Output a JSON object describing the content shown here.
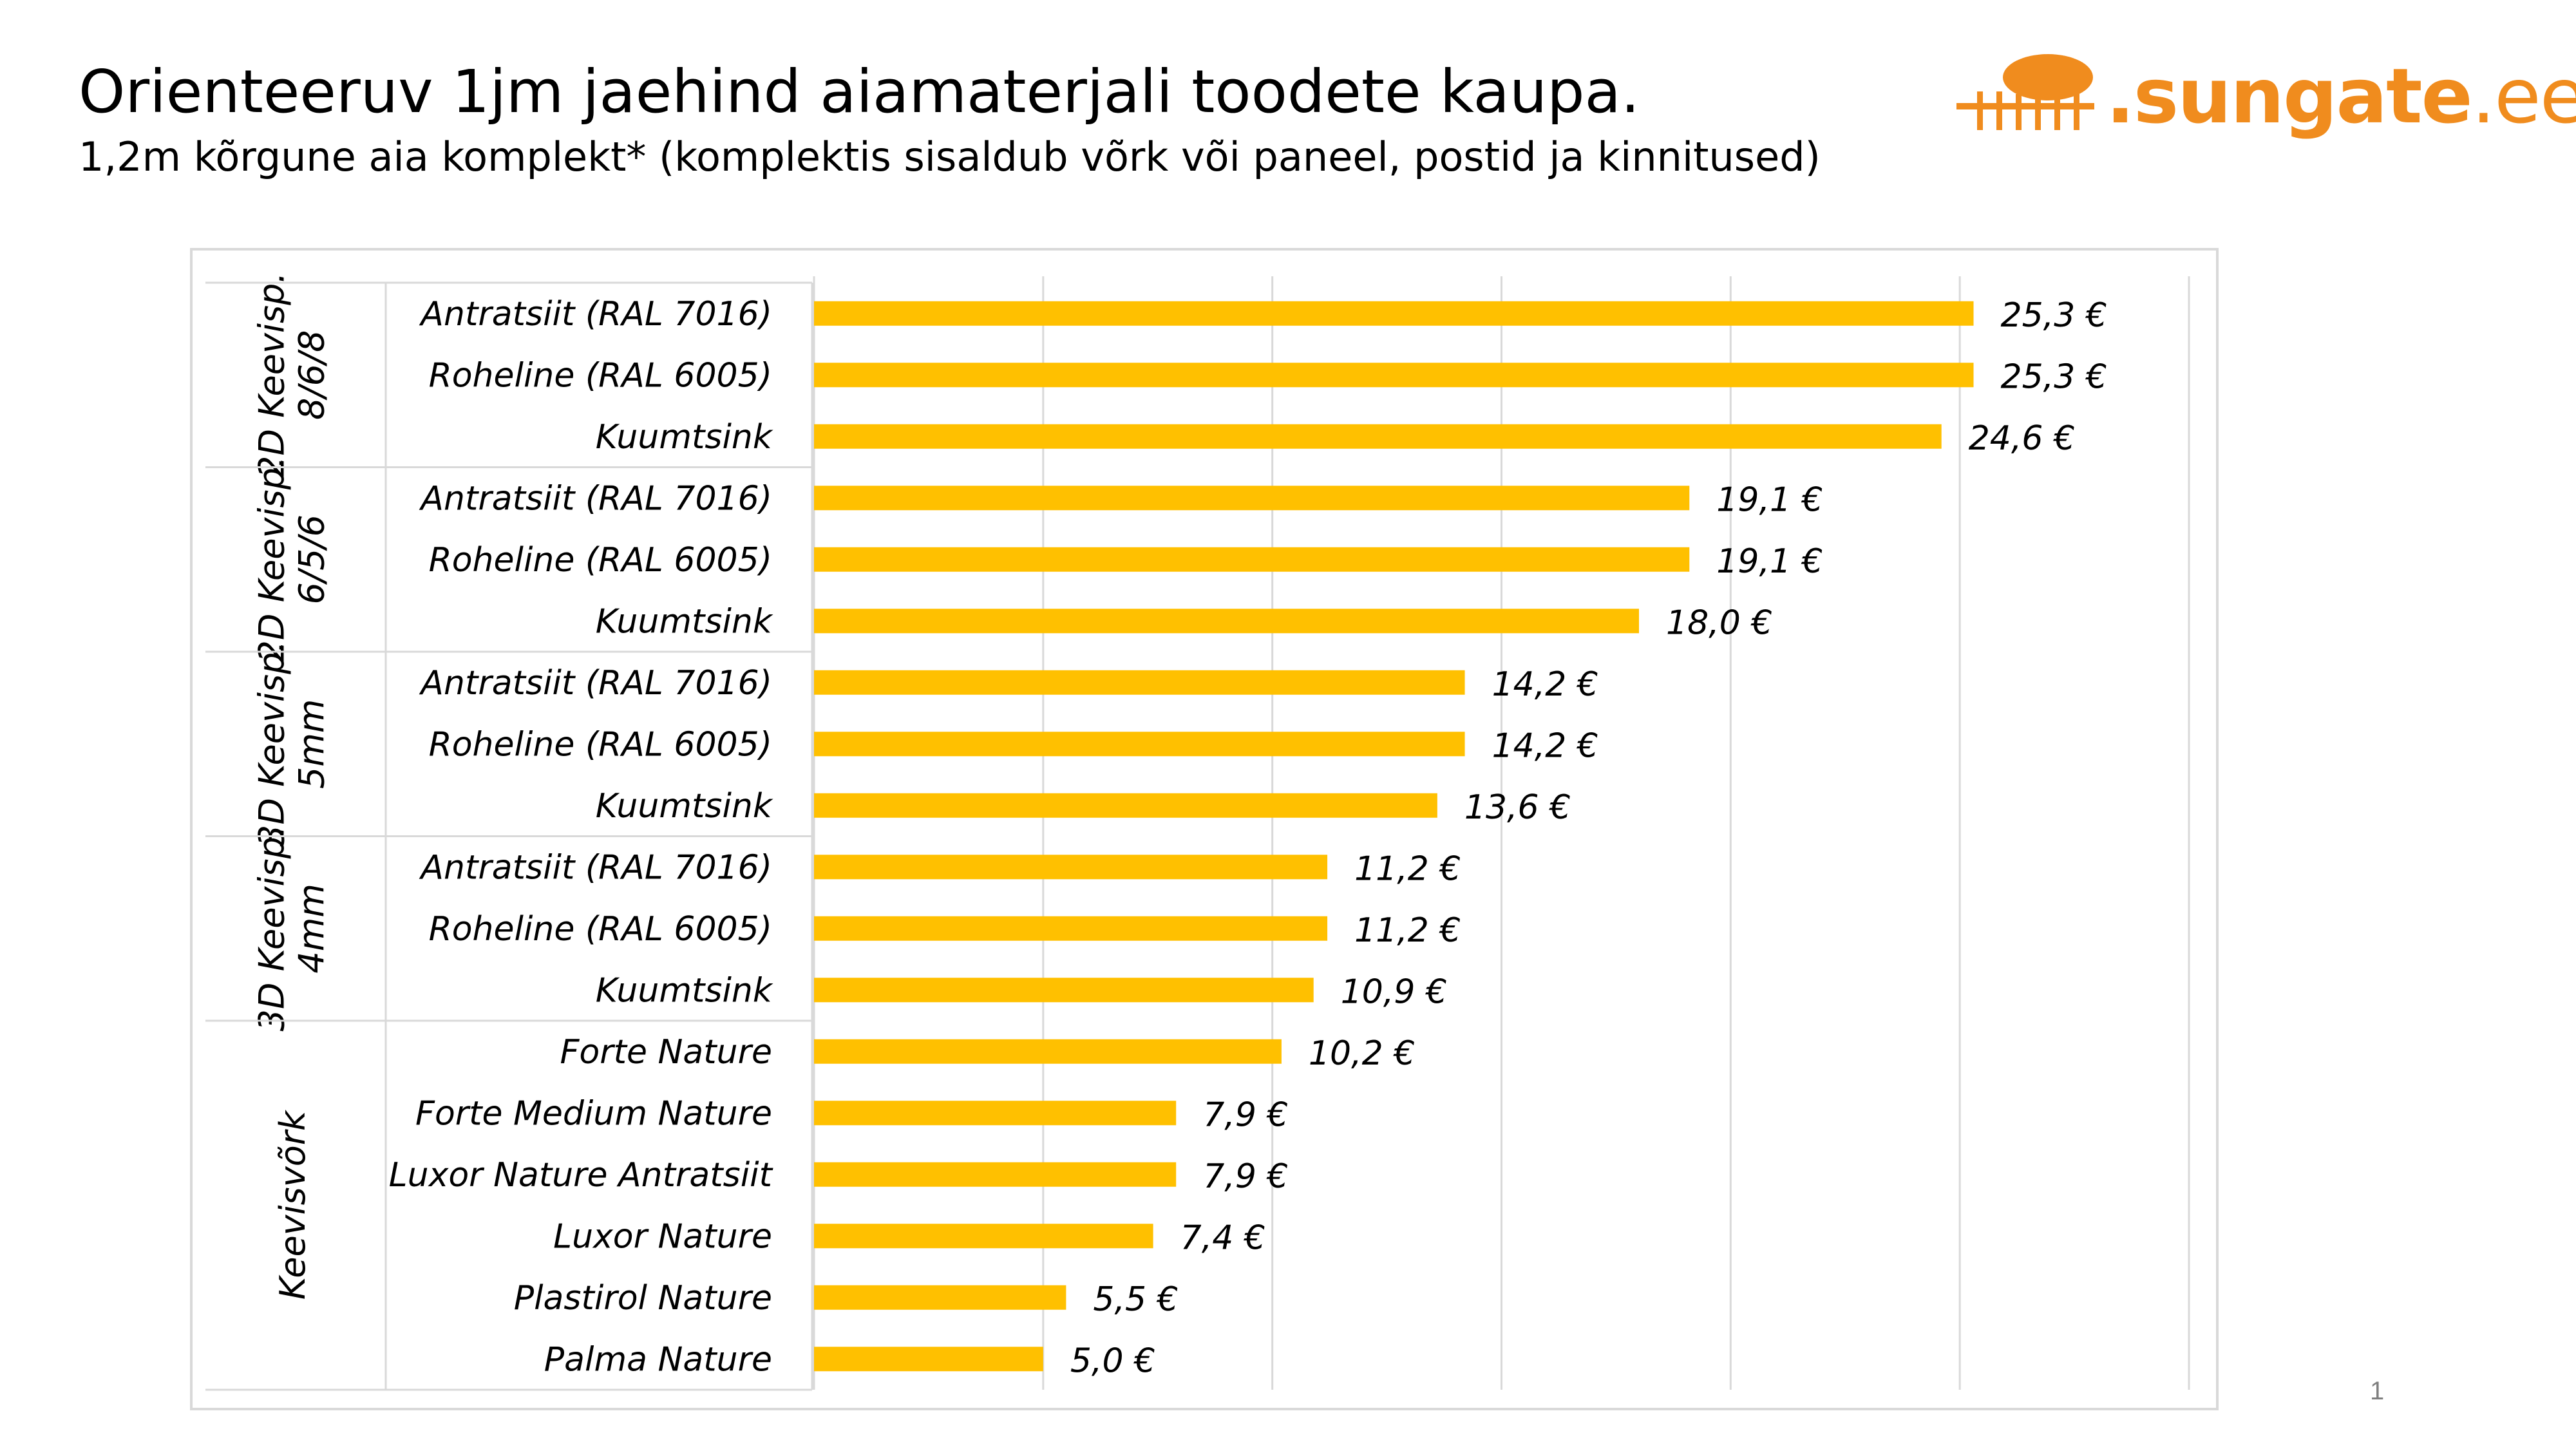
{
  "slide": {
    "title": "Orienteeruv 1jm jaehind aiamaterjali toodete kaupa.",
    "subtitle": "1,2m kõrgune aia komplekt*  (komplektis sisaldub võrk või paneel, postid ja kinnitused)",
    "page_number": "1"
  },
  "logo": {
    "dot": ".",
    "name": "sungate",
    "tld": ".ee",
    "color": "#f08c1e"
  },
  "chart_data": {
    "type": "bar",
    "orientation": "horizontal",
    "bar_color": "#ffc000",
    "grid": true,
    "xlim": [
      0,
      30
    ],
    "groups": [
      {
        "label_line1": "2D Keevisp.",
        "label_line2": "8/6/8",
        "categories": [
          "Antratsiit (RAL 7016)",
          "Roheline (RAL 6005)",
          "Kuumtsink"
        ],
        "values": [
          25.3,
          25.3,
          24.6
        ],
        "data_labels": [
          "25,3 €",
          "25,3 €",
          "24,6 €"
        ]
      },
      {
        "label_line1": "2D Keevisp.",
        "label_line2": "6/5/6",
        "categories": [
          "Antratsiit (RAL 7016)",
          "Roheline (RAL 6005)",
          "Kuumtsink"
        ],
        "values": [
          19.1,
          19.1,
          18.0
        ],
        "data_labels": [
          "19,1 €",
          "19,1 €",
          "18,0 €"
        ]
      },
      {
        "label_line1": "3D Keevisp.",
        "label_line2": "5mm",
        "categories": [
          "Antratsiit (RAL 7016)",
          "Roheline (RAL 6005)",
          "Kuumtsink"
        ],
        "values": [
          14.2,
          14.2,
          13.6
        ],
        "data_labels": [
          "14,2 €",
          "14,2 €",
          "13,6 €"
        ]
      },
      {
        "label_line1": "3D Keevisp.",
        "label_line2": "4mm",
        "categories": [
          "Antratsiit (RAL 7016)",
          "Roheline (RAL 6005)",
          "Kuumtsink"
        ],
        "values": [
          11.2,
          11.2,
          10.9
        ],
        "data_labels": [
          "11,2 €",
          "11,2 €",
          "10,9 €"
        ]
      },
      {
        "label_line1": "Keevisvõrk",
        "label_line2": "",
        "categories": [
          "Forte Nature",
          "Forte Medium Nature",
          "Luxor Nature Antratsiit",
          "Luxor Nature",
          "Plastirol Nature",
          "Palma Nature"
        ],
        "values": [
          10.2,
          7.9,
          7.9,
          7.4,
          5.5,
          5.0
        ],
        "data_labels": [
          "10,2 €",
          "7,9 €",
          "7,9 €",
          "7,4 €",
          "5,5 €",
          "5,0 €"
        ]
      }
    ]
  }
}
